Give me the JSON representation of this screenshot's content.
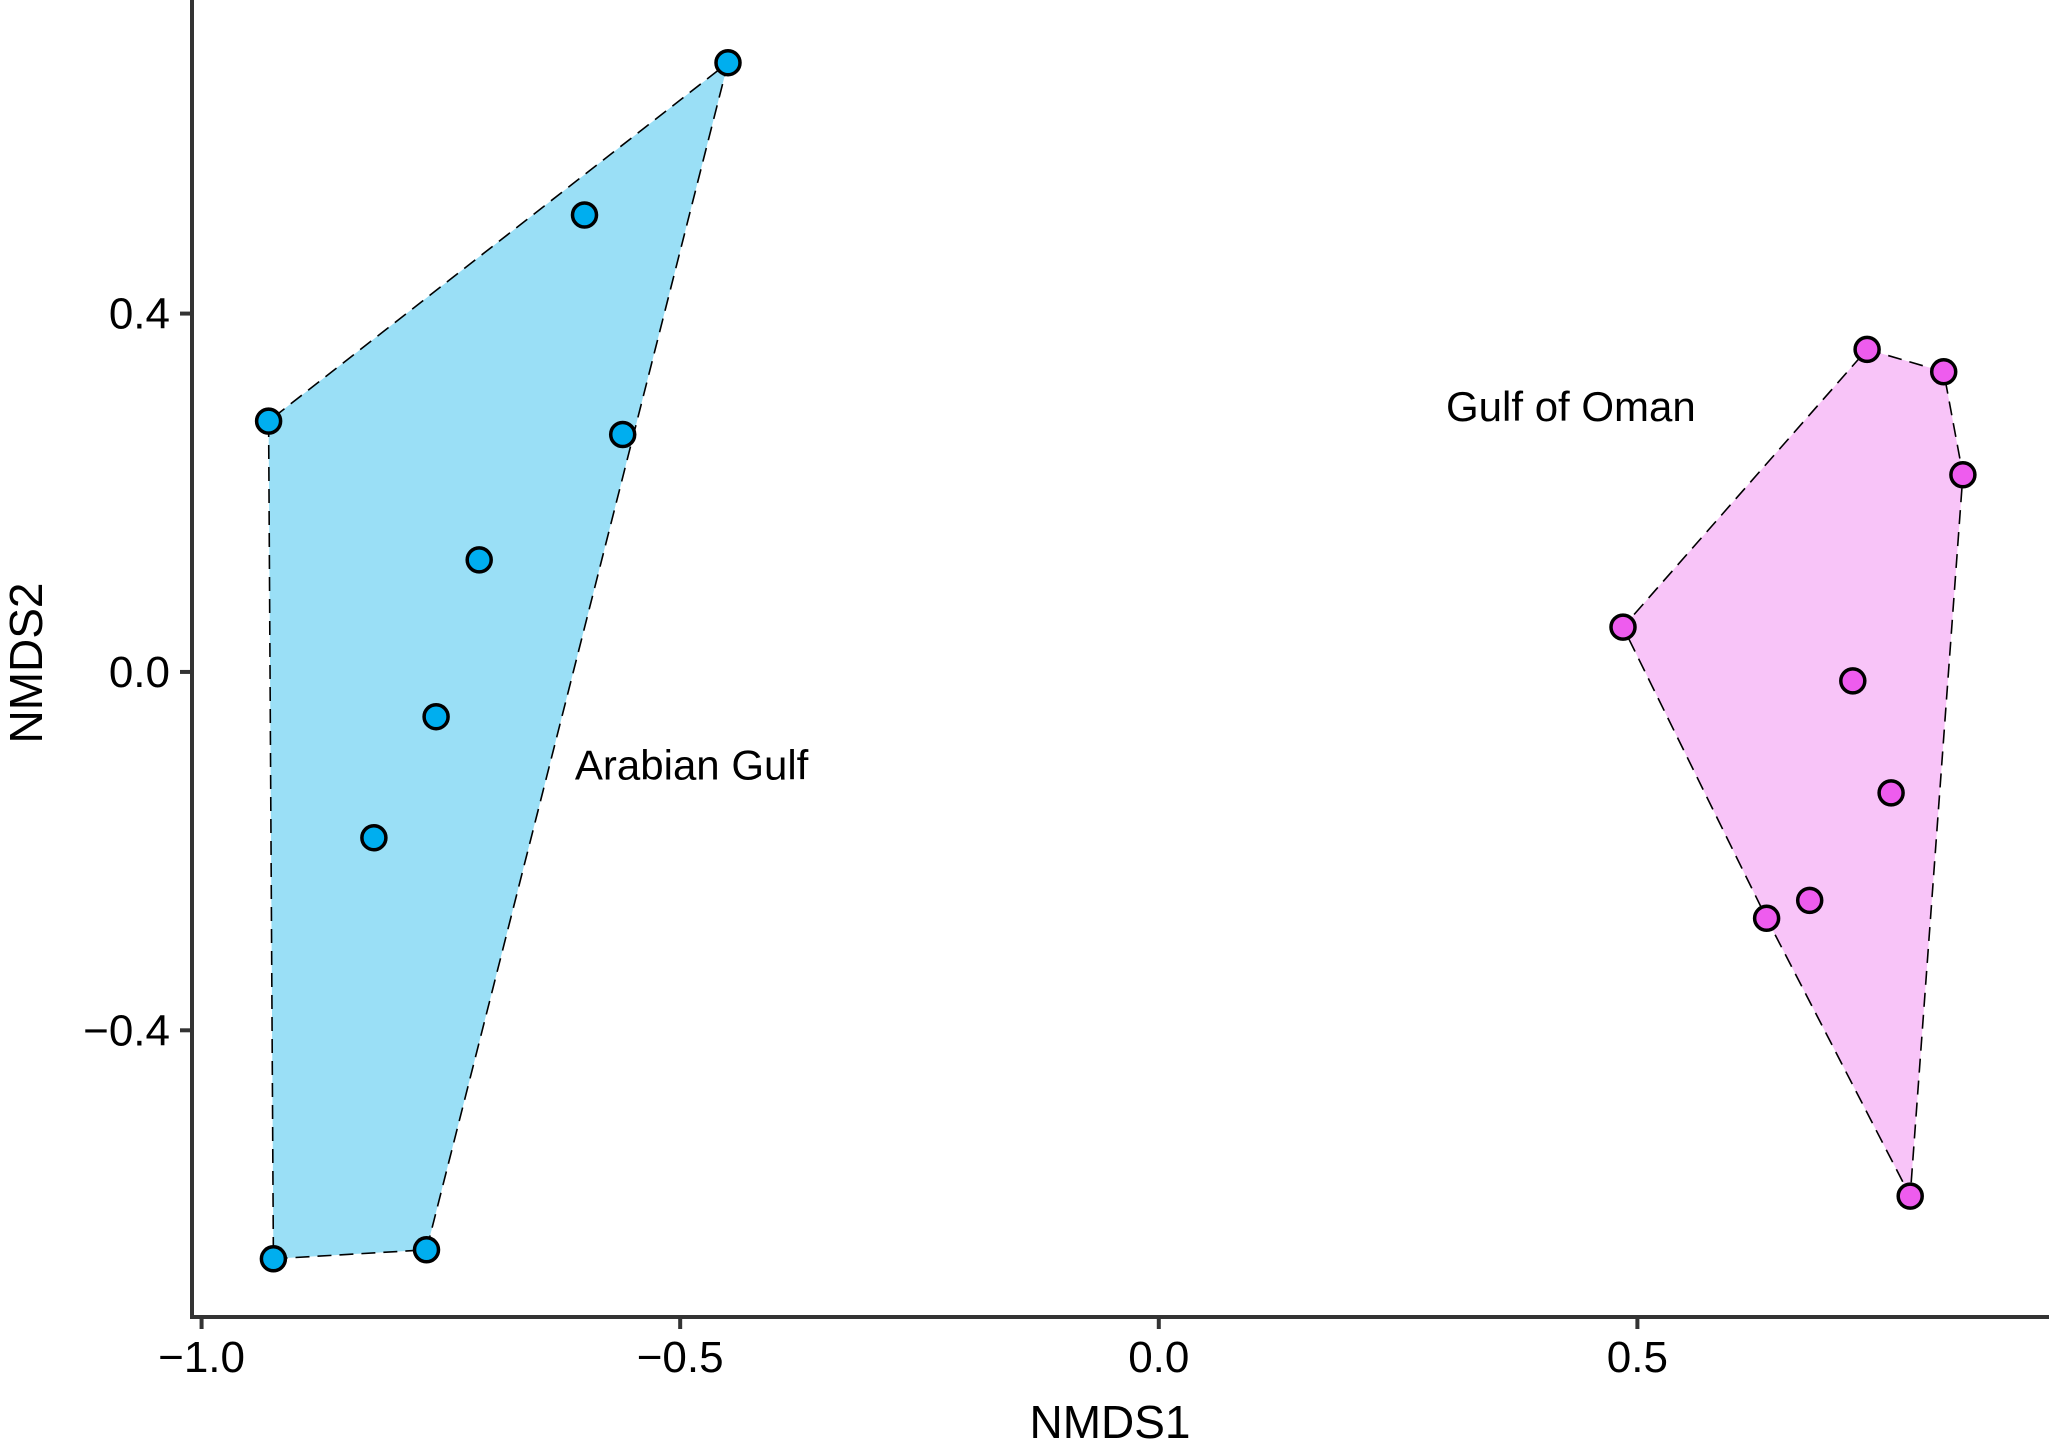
{
  "chart_data": {
    "type": "scatter",
    "xlabel": "NMDS1",
    "ylabel": "NMDS2",
    "xlim": [
      -1.01,
      0.93
    ],
    "ylim": [
      -0.72,
      0.75
    ],
    "x_ticks": [
      -1.0,
      -0.5,
      0.0,
      0.5
    ],
    "x_tick_labels": [
      "−1.0",
      "−0.5",
      "0.0",
      "0.5"
    ],
    "y_ticks": [
      -0.4,
      0.0,
      0.4
    ],
    "y_tick_labels": [
      "−0.4",
      "0.0",
      "0.4"
    ],
    "grid": false,
    "hull_outline_color": "#000000",
    "series": [
      {
        "name": "Arabian Gulf",
        "marker_color": "#00AEEF",
        "hull_color": "#9ADFF6",
        "label_position": {
          "x": -0.61,
          "y": -0.12
        },
        "points": [
          {
            "x": -0.45,
            "y": 0.68
          },
          {
            "x": -0.6,
            "y": 0.51
          },
          {
            "x": -0.93,
            "y": 0.28
          },
          {
            "x": -0.56,
            "y": 0.265
          },
          {
            "x": -0.71,
            "y": 0.125
          },
          {
            "x": -0.755,
            "y": -0.05
          },
          {
            "x": -0.82,
            "y": -0.185
          },
          {
            "x": -0.765,
            "y": -0.645
          },
          {
            "x": -0.925,
            "y": -0.655
          }
        ],
        "hull": [
          0,
          7,
          8,
          2,
          0
        ]
      },
      {
        "name": "Gulf of Oman",
        "marker_color": "#EE5CEE",
        "hull_color": "#F8C4F8",
        "label_position": {
          "x": 0.3,
          "y": 0.28
        },
        "points": [
          {
            "x": 0.74,
            "y": 0.36
          },
          {
            "x": 0.82,
            "y": 0.335
          },
          {
            "x": 0.84,
            "y": 0.22
          },
          {
            "x": 0.485,
            "y": 0.05
          },
          {
            "x": 0.725,
            "y": -0.01
          },
          {
            "x": 0.765,
            "y": -0.135
          },
          {
            "x": 0.68,
            "y": -0.255
          },
          {
            "x": 0.635,
            "y": -0.275
          },
          {
            "x": 0.785,
            "y": -0.585
          }
        ],
        "hull": [
          0,
          1,
          2,
          8,
          7,
          3,
          0
        ]
      }
    ]
  }
}
